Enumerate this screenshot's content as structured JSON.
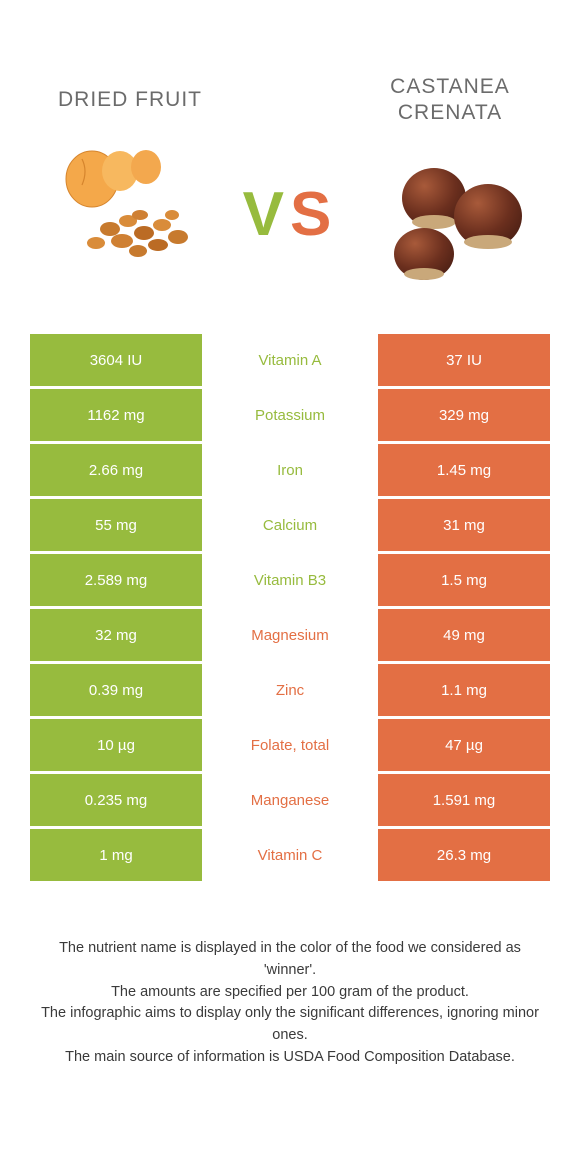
{
  "colors": {
    "left": "#97bb3e",
    "right": "#e36f44",
    "bg": "#ffffff",
    "title": "#6b6b6b",
    "footer": "#3a3a3a"
  },
  "header": {
    "left_title": "DRIED FRUIT",
    "right_title": "CASTANEA\nCRENATA",
    "vs_v": "V",
    "vs_s": "S"
  },
  "rows": [
    {
      "left": "3604 IU",
      "label": "Vitamin A",
      "right": "37 IU",
      "winner": "left"
    },
    {
      "left": "1162 mg",
      "label": "Potassium",
      "right": "329 mg",
      "winner": "left"
    },
    {
      "left": "2.66 mg",
      "label": "Iron",
      "right": "1.45 mg",
      "winner": "left"
    },
    {
      "left": "55 mg",
      "label": "Calcium",
      "right": "31 mg",
      "winner": "left"
    },
    {
      "left": "2.589 mg",
      "label": "Vitamin B3",
      "right": "1.5 mg",
      "winner": "left"
    },
    {
      "left": "32 mg",
      "label": "Magnesium",
      "right": "49 mg",
      "winner": "right"
    },
    {
      "left": "0.39 mg",
      "label": "Zinc",
      "right": "1.1 mg",
      "winner": "right"
    },
    {
      "left": "10 µg",
      "label": "Folate, total",
      "right": "47 µg",
      "winner": "right"
    },
    {
      "left": "0.235 mg",
      "label": "Manganese",
      "right": "1.591 mg",
      "winner": "right"
    },
    {
      "left": "1 mg",
      "label": "Vitamin C",
      "right": "26.3 mg",
      "winner": "right"
    }
  ],
  "footer": {
    "line1": "The nutrient name is displayed in the color of the food we considered as 'winner'.",
    "line2": "The amounts are specified per 100 gram of the product.",
    "line3": "The infographic aims to display only the significant differences, ignoring minor ones.",
    "line4": "The main source of information is USDA Food Composition Database."
  }
}
